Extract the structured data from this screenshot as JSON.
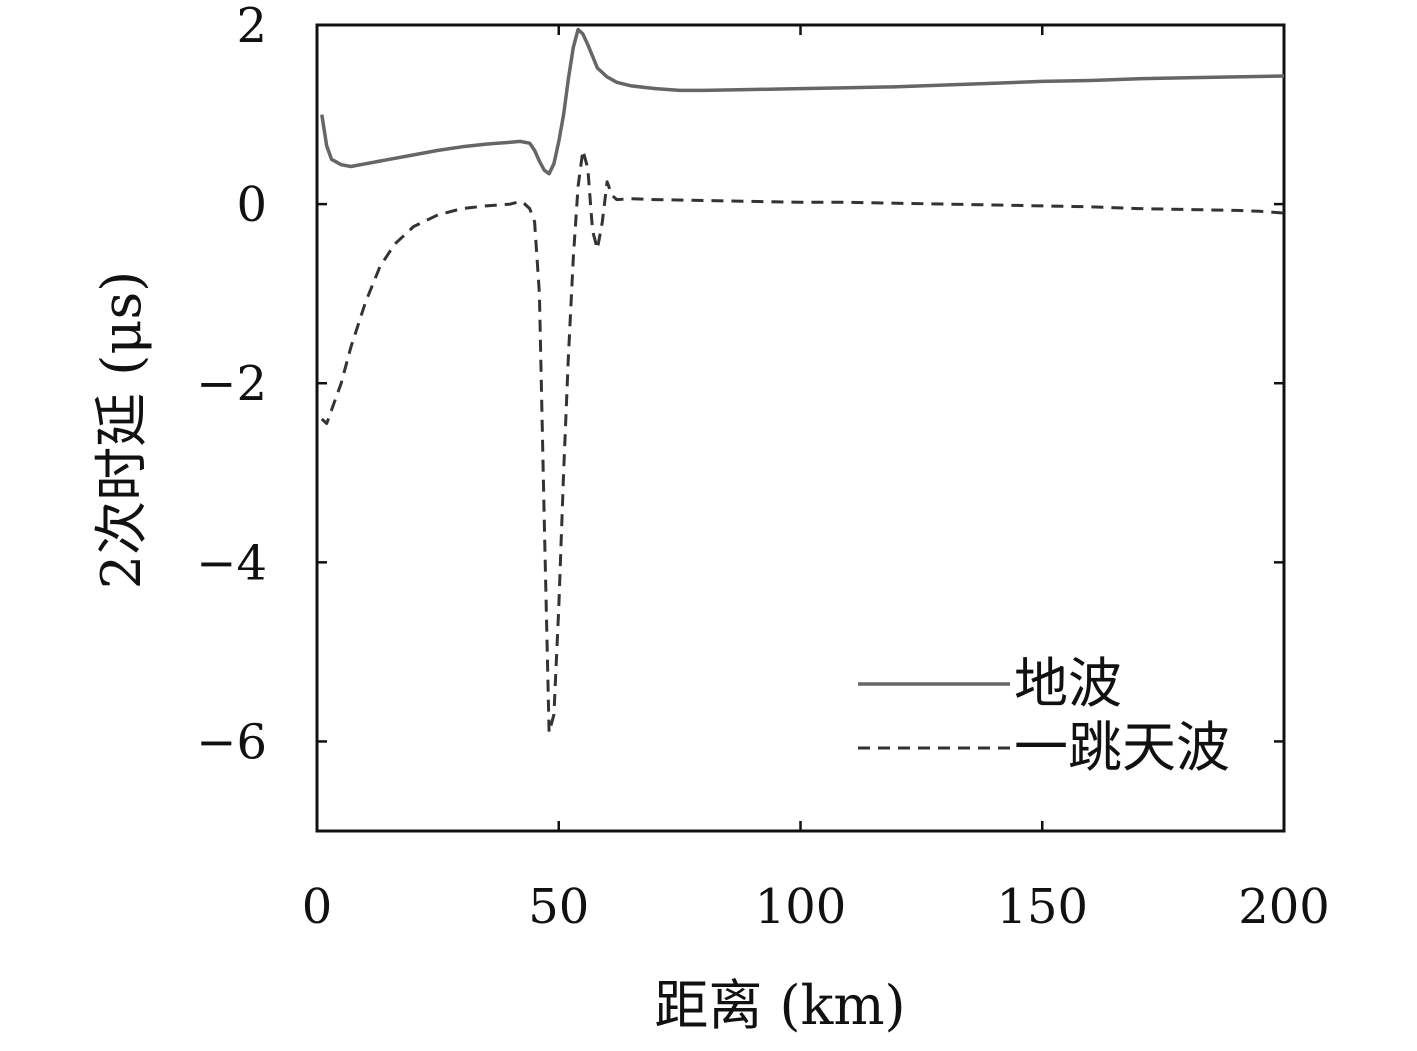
{
  "chart_data": {
    "type": "line",
    "title": "",
    "xlabel": "距离 (km)",
    "ylabel": "2次时延 (μs)",
    "xlim": [
      0,
      200
    ],
    "ylim": [
      -7,
      2
    ],
    "xticks": [
      0,
      50,
      100,
      150,
      200
    ],
    "yticks": [
      2,
      0,
      -2,
      -4,
      -6
    ],
    "xtick_labels": [
      "0",
      "50",
      "100",
      "150",
      "200"
    ],
    "ytick_labels": [
      "2",
      "0",
      "−2",
      "−4",
      "−6"
    ],
    "grid": false,
    "legend_position": "bottom-right",
    "series": [
      {
        "name": "地波",
        "style": "solid",
        "color": "#666666",
        "x": [
          1,
          2,
          3,
          5,
          7,
          10,
          15,
          20,
          25,
          30,
          35,
          40,
          42,
          44,
          45,
          46,
          47,
          48,
          49,
          50,
          51,
          52,
          53,
          54,
          55,
          56,
          57,
          58,
          60,
          62,
          65,
          70,
          75,
          80,
          90,
          100,
          110,
          120,
          130,
          140,
          150,
          160,
          170,
          180,
          190,
          200
        ],
        "y": [
          1.0,
          0.65,
          0.5,
          0.44,
          0.42,
          0.45,
          0.5,
          0.55,
          0.6,
          0.64,
          0.67,
          0.69,
          0.7,
          0.68,
          0.6,
          0.48,
          0.38,
          0.34,
          0.45,
          0.7,
          1.0,
          1.4,
          1.75,
          1.95,
          1.9,
          1.78,
          1.65,
          1.52,
          1.42,
          1.36,
          1.32,
          1.29,
          1.27,
          1.27,
          1.28,
          1.29,
          1.3,
          1.31,
          1.33,
          1.35,
          1.37,
          1.38,
          1.4,
          1.41,
          1.42,
          1.43
        ]
      },
      {
        "name": "一跳天波",
        "style": "dashed",
        "color": "#333333",
        "x": [
          1,
          2,
          3,
          5,
          7,
          10,
          13,
          16,
          20,
          25,
          30,
          35,
          40,
          42,
          43,
          44,
          45,
          46,
          47,
          48,
          49,
          50,
          51,
          52,
          53,
          54,
          55,
          56,
          57,
          58,
          59,
          60,
          61,
          62,
          65,
          70,
          80,
          90,
          100,
          110,
          120,
          130,
          140,
          150,
          160,
          170,
          180,
          190,
          195,
          200
        ],
        "y": [
          -2.4,
          -2.45,
          -2.3,
          -2.0,
          -1.6,
          -1.1,
          -0.7,
          -0.45,
          -0.25,
          -0.12,
          -0.05,
          -0.02,
          0.0,
          0.03,
          0.0,
          -0.05,
          -0.2,
          -1.0,
          -3.5,
          -5.9,
          -5.7,
          -4.5,
          -3.0,
          -1.7,
          -0.6,
          0.2,
          0.6,
          0.4,
          -0.3,
          -0.5,
          -0.2,
          0.25,
          0.1,
          0.05,
          0.06,
          0.05,
          0.04,
          0.03,
          0.02,
          0.02,
          0.01,
          0.0,
          -0.01,
          -0.02,
          -0.03,
          -0.05,
          -0.06,
          -0.07,
          -0.08,
          -0.1
        ]
      }
    ]
  }
}
